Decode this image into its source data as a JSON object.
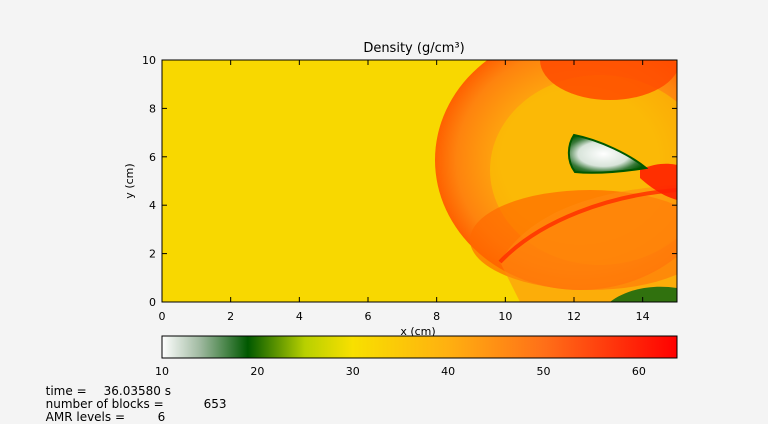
{
  "chart_data": {
    "type": "heatmap",
    "title": "Density (g/cm³)",
    "xlabel": "x (cm)",
    "ylabel": "y (cm)",
    "xlim": [
      0,
      15
    ],
    "ylim": [
      0,
      10
    ],
    "x_ticks": [
      "0",
      "2",
      "4",
      "6",
      "8",
      "10",
      "12",
      "14"
    ],
    "y_ticks": [
      "0",
      "2",
      "4",
      "6",
      "8",
      "10"
    ],
    "colorbar": {
      "range": [
        10,
        64
      ],
      "ticks": [
        "10",
        "20",
        "30",
        "40",
        "50",
        "60"
      ],
      "colors": [
        {
          "value": 10,
          "color": "#ffffff"
        },
        {
          "value": 14,
          "color": "#9fb9a0"
        },
        {
          "value": 19,
          "color": "#005800"
        },
        {
          "value": 25,
          "color": "#b8d000"
        },
        {
          "value": 30,
          "color": "#f8e000"
        },
        {
          "value": 40,
          "color": "#ffb010"
        },
        {
          "value": 50,
          "color": "#ff7018"
        },
        {
          "value": 64,
          "color": "#ff0000"
        }
      ]
    },
    "ambient_density": 30
  },
  "info": {
    "time_label": "time =",
    "time_value": "36.03580 s",
    "blocks_label": "number of blocks =",
    "blocks_value": "653",
    "levels_label": "AMR levels =",
    "levels_value": "6"
  }
}
